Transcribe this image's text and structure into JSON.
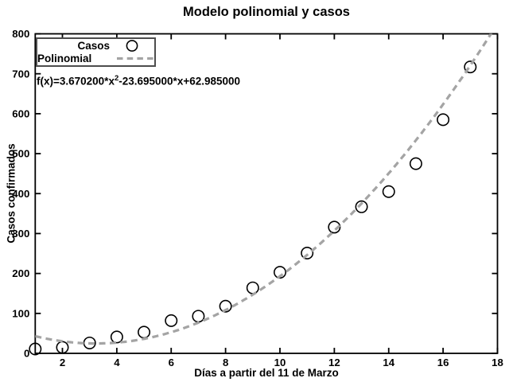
{
  "title": "Modelo polinomial y casos",
  "equation": {
    "prefix": "f(x)=3.670200*x",
    "superscript": "2",
    "suffix": "-23.695000*x+62.985000"
  },
  "legend": {
    "position": "top-left-inside",
    "items": [
      {
        "label": "Casos",
        "marker": "open-circle"
      },
      {
        "label": "Polinomial",
        "marker": "dashed-line"
      }
    ]
  },
  "colors": {
    "curve": "#a4a4a4",
    "marker_stroke": "#000000",
    "axis": "#000000",
    "text": "#000000",
    "legend_border": "#4d4d4d",
    "background": "#ffffff"
  },
  "chart_data": {
    "type": "scatter",
    "title": "Modelo polinomial y casos",
    "xlabel": "Días a partir del 11 de Marzo",
    "ylabel": "Casos confirmados",
    "xlim": [
      1,
      18
    ],
    "ylim": [
      0,
      800
    ],
    "x_ticks": [
      2,
      4,
      6,
      8,
      10,
      12,
      14,
      16,
      18
    ],
    "y_ticks": [
      0,
      100,
      200,
      300,
      400,
      500,
      600,
      700,
      800
    ],
    "grid": false,
    "legend_position": "top-left-inside",
    "annotation": "f(x)=3.670200*x^2-23.695000*x+62.985000",
    "series": [
      {
        "name": "Casos",
        "type": "scatter",
        "marker": "open-circle",
        "x": [
          1,
          2,
          3,
          4,
          5,
          6,
          7,
          8,
          9,
          10,
          11,
          12,
          13,
          14,
          15,
          16,
          17
        ],
        "y": [
          11,
          15,
          26,
          41,
          53,
          82,
          93,
          118,
          164,
          203,
          251,
          316,
          367,
          405,
          475,
          585,
          717
        ]
      },
      {
        "name": "Polinomial",
        "type": "line",
        "style": "dashed",
        "polynomial_coefficients": {
          "x2": 3.6702,
          "x1": -23.695,
          "x0": 62.985
        },
        "x_range": [
          1,
          18
        ]
      }
    ]
  }
}
